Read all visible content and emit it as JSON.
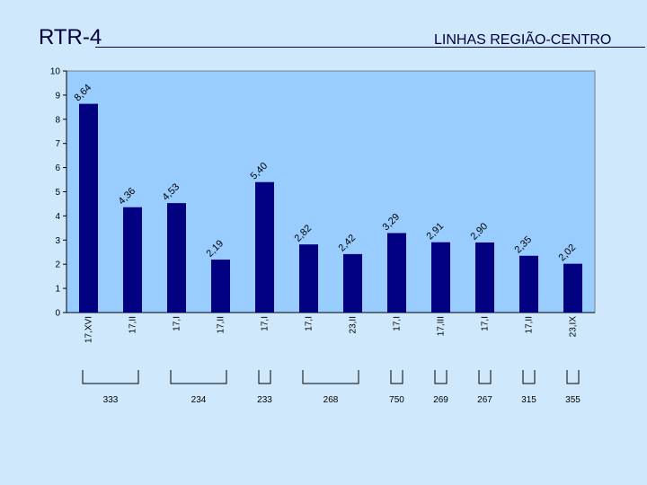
{
  "header": {
    "title": "RTR-4",
    "subtitle": "LINHAS REGIÃO-CENTRO"
  },
  "colors": {
    "background": "#cfe8fb",
    "plot_area": "#99ccff",
    "bar": "#000080"
  },
  "chart_data": {
    "type": "bar",
    "title": "",
    "xlabel": "",
    "ylabel": "",
    "ylim": [
      0,
      10
    ],
    "yticks": [
      0,
      1,
      2,
      3,
      4,
      5,
      6,
      7,
      8,
      9,
      10
    ],
    "grid": false,
    "categories": [
      "17,XVI",
      "17,II",
      "17,I",
      "17,II",
      "17,I",
      "17,I",
      "23,II",
      "17,I",
      "17,III",
      "17,I",
      "17,II",
      "23,IX"
    ],
    "values": [
      8.64,
      4.36,
      4.53,
      2.19,
      5.4,
      2.82,
      2.42,
      3.29,
      2.91,
      2.9,
      2.35,
      2.02
    ],
    "data_labels": [
      "8,64",
      "4,36",
      "4,53",
      "2,19",
      "5,40",
      "2,82",
      "2,42",
      "3,29",
      "2,91",
      "2,90",
      "2,35",
      "2,02"
    ],
    "groups": [
      {
        "label": "333",
        "start": 0,
        "end": 1
      },
      {
        "label": "234",
        "start": 2,
        "end": 3
      },
      {
        "label": "233",
        "start": 4,
        "end": 4
      },
      {
        "label": "268",
        "start": 5,
        "end": 6
      },
      {
        "label": "750",
        "start": 7,
        "end": 7
      },
      {
        "label": "269",
        "start": 8,
        "end": 8
      },
      {
        "label": "267",
        "start": 9,
        "end": 9
      },
      {
        "label": "315",
        "start": 10,
        "end": 10
      },
      {
        "label": "355",
        "start": 11,
        "end": 11
      }
    ]
  }
}
